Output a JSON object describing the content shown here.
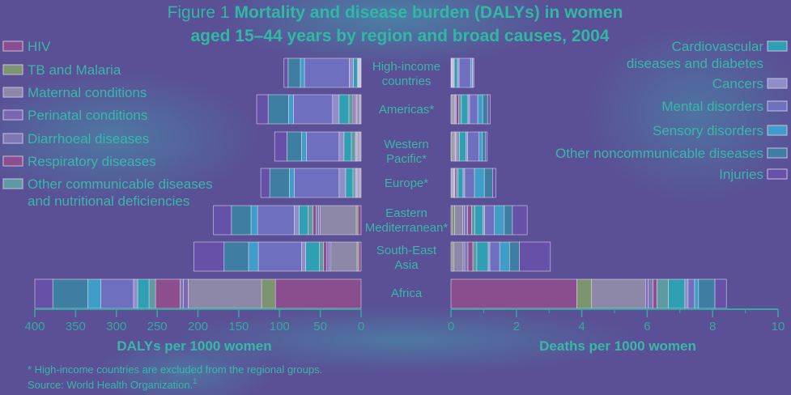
{
  "title": {
    "prefix": "Figure 1",
    "bold_line1": "Mortality and disease burden (DALYs) in women",
    "bold_line2": "aged 15–44 years by region and broad causes, 2004"
  },
  "chart_data": {
    "type": "bar",
    "orientation": "horizontal-stacked",
    "regions": [
      {
        "label": [
          "High-income",
          "countries"
        ]
      },
      {
        "label": [
          "Americas*"
        ]
      },
      {
        "label": [
          "Western",
          "Pacific*"
        ]
      },
      {
        "label": [
          "Europe*"
        ]
      },
      {
        "label": [
          "Eastern",
          "Mediterranean*"
        ]
      },
      {
        "label": [
          "South-East",
          "Asia"
        ]
      },
      {
        "label": [
          "Africa"
        ]
      }
    ],
    "categories": [
      "HIV",
      "TB and Malaria",
      "Maternal conditions",
      "Perinatal conditions",
      "Diarrhoeal diseases",
      "Respiratory diseases",
      "Other communicable diseases and nutritional deficiencies",
      "Cardiovascular diseases and diabetes",
      "Cancers",
      "Mental disorders",
      "Sensory disorders",
      "Other noncommunicable diseases",
      "Injuries"
    ],
    "colors": [
      "#8a4d8e",
      "#7d9470",
      "#8d88a8",
      "#7967b4",
      "#7d78b4",
      "#8c4e8c",
      "#5d9aa2",
      "#2fa0b4",
      "#8f8ec8",
      "#6f6fc0",
      "#3e9ec8",
      "#3d7ea2",
      "#6650a8"
    ],
    "dalys_panel": {
      "xlabel": "DALYs per 1000 women",
      "xlim": [
        0,
        400
      ],
      "xticks": [
        400,
        350,
        300,
        250,
        200,
        150,
        100,
        50,
        0
      ],
      "series": [
        {
          "name": "HIV",
          "values": [
            0.5,
            1,
            1,
            1,
            4,
            3,
            105
          ]
        },
        {
          "name": "TB and Malaria",
          "values": [
            0.5,
            1,
            1,
            1,
            2,
            2,
            17
          ]
        },
        {
          "name": "Maternal conditions",
          "values": [
            1,
            3,
            2,
            2,
            44,
            32,
            90
          ]
        },
        {
          "name": "Perinatal conditions",
          "values": [
            0.5,
            1,
            1,
            1,
            2,
            2,
            6
          ]
        },
        {
          "name": "Diarrhoeal diseases",
          "values": [
            0.5,
            2,
            1,
            1,
            3,
            3,
            4
          ]
        },
        {
          "name": "Respiratory diseases",
          "values": [
            0.5,
            2,
            1,
            1,
            4,
            4,
            30
          ]
        },
        {
          "name": "Other communicable diseases and nutritional deficiencies",
          "values": [
            1,
            5,
            5,
            3,
            6,
            5,
            8
          ]
        },
        {
          "name": "Cardiovascular diseases and diabetes",
          "values": [
            5,
            12,
            9,
            9,
            11,
            17,
            14
          ]
        },
        {
          "name": "Cancers",
          "values": [
            5,
            8,
            6,
            8,
            6,
            5,
            5
          ]
        },
        {
          "name": "Mental disorders",
          "values": [
            55,
            48,
            40,
            55,
            45,
            53,
            40
          ]
        },
        {
          "name": "Sensory disorders",
          "values": [
            5,
            6,
            6,
            6,
            8,
            12,
            16
          ]
        },
        {
          "name": "Other noncommunicable diseases",
          "values": [
            15,
            25,
            18,
            24,
            24,
            30,
            43
          ]
        },
        {
          "name": "Injuries",
          "values": [
            5,
            14,
            15,
            11,
            22,
            37,
            22
          ]
        }
      ]
    },
    "deaths_panel": {
      "xlabel": "Deaths per 1000 women",
      "xlim": [
        0,
        10
      ],
      "xticks": [
        0,
        2,
        4,
        6,
        8,
        10
      ],
      "series": [
        {
          "name": "HIV",
          "values": [
            0.01,
            0.02,
            0.02,
            0.02,
            0.03,
            0.03,
            3.85
          ]
        },
        {
          "name": "TB and Malaria",
          "values": [
            0.01,
            0.04,
            0.05,
            0.03,
            0.08,
            0.06,
            0.45
          ]
        },
        {
          "name": "Maternal conditions",
          "values": [
            0.02,
            0.05,
            0.05,
            0.03,
            0.25,
            0.28,
            1.65
          ]
        },
        {
          "name": "Perinatal conditions",
          "values": [
            0.01,
            0.02,
            0.02,
            0.02,
            0.05,
            0.05,
            0.08
          ]
        },
        {
          "name": "Diarrhoeal diseases",
          "values": [
            0.01,
            0.03,
            0.02,
            0.02,
            0.1,
            0.1,
            0.15
          ]
        },
        {
          "name": "Respiratory diseases",
          "values": [
            0.02,
            0.08,
            0.04,
            0.05,
            0.12,
            0.15,
            0.12
          ]
        },
        {
          "name": "Other communicable diseases and nutritional deficiencies",
          "values": [
            0.02,
            0.08,
            0.06,
            0.05,
            0.1,
            0.12,
            0.35
          ]
        },
        {
          "name": "Cardiovascular diseases and diabetes",
          "values": [
            0.1,
            0.2,
            0.2,
            0.15,
            0.25,
            0.35,
            0.5
          ]
        },
        {
          "name": "Cancers",
          "values": [
            0.05,
            0.05,
            0.05,
            0.05,
            0.05,
            0.05,
            0.1
          ]
        },
        {
          "name": "Mental disorders",
          "values": [
            0.35,
            0.25,
            0.35,
            0.3,
            0.3,
            0.3,
            0.2
          ]
        },
        {
          "name": "Sensory disorders",
          "values": [
            0.05,
            0.15,
            0.1,
            0.3,
            0.3,
            0.3,
            0.12
          ]
        },
        {
          "name": "Other noncommunicable diseases",
          "values": [
            0.02,
            0.15,
            0.1,
            0.25,
            0.25,
            0.3,
            0.5
          ]
        },
        {
          "name": "Injuries",
          "values": [
            0.03,
            0.08,
            0.05,
            0.1,
            0.45,
            0.95,
            0.35
          ]
        }
      ]
    }
  },
  "footnote": "* High-income countries are excluded from the regional groups.",
  "source": "Source: World Health Organization.",
  "source_ref": "1"
}
